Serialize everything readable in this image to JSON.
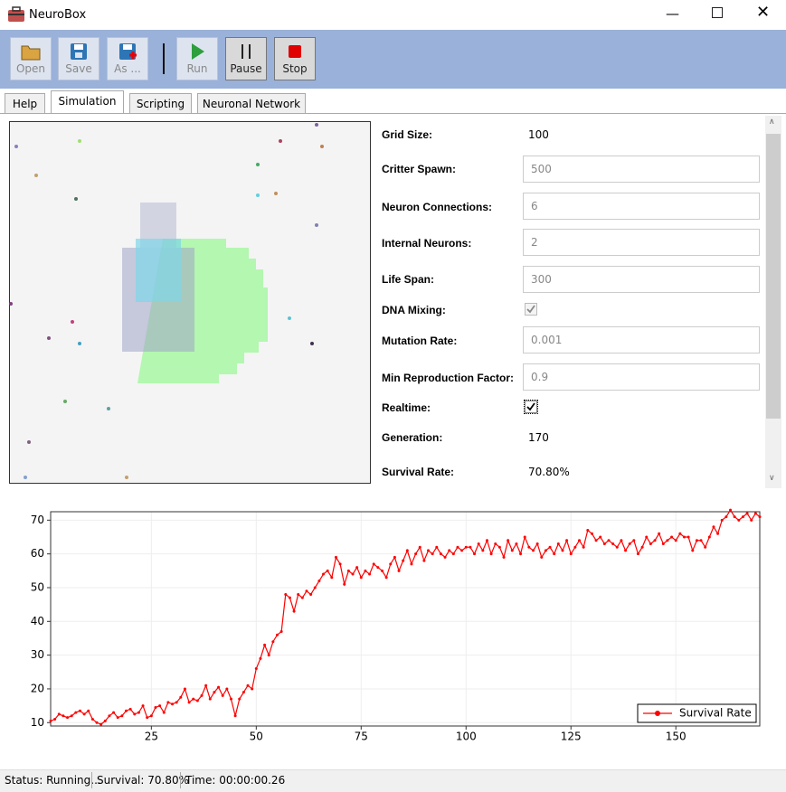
{
  "window": {
    "title": "NeuroBox"
  },
  "toolbar": [
    "Open",
    "Save",
    "As ...",
    "Run",
    "Pause",
    "Stop"
  ],
  "tabs": [
    "Help",
    "Simulation",
    "Scripting",
    "Neuronal Network"
  ],
  "settings": {
    "labels": [
      "Grid Size:",
      "Critter Spawn:",
      "Neuron Connections:",
      "Internal Neurons:",
      "Life Span:",
      "DNA Mixing:",
      "Mutation Rate:",
      "Min Reproduction Factor:",
      "Realtime:",
      "Generation:",
      "Survival Rate:"
    ],
    "grid_size": "100",
    "critter_spawn": "500",
    "neuron_connections": "6",
    "internal_neurons": "2",
    "life_span": "300",
    "dna_mixing": true,
    "mutation_rate": "0.001",
    "min_reproduction_factor": "0.9",
    "realtime": true,
    "generation": "170",
    "survival_rate": "70.80%"
  },
  "chart_data": {
    "type": "line",
    "x": [
      1,
      2,
      3,
      4,
      5,
      6,
      7,
      8,
      9,
      10,
      11,
      12,
      13,
      14,
      15,
      16,
      17,
      18,
      19,
      20,
      21,
      22,
      23,
      24,
      25,
      26,
      27,
      28,
      29,
      30,
      31,
      32,
      33,
      34,
      35,
      36,
      37,
      38,
      39,
      40,
      41,
      42,
      43,
      44,
      45,
      46,
      47,
      48,
      49,
      50,
      51,
      52,
      53,
      54,
      55,
      56,
      57,
      58,
      59,
      60,
      61,
      62,
      63,
      64,
      65,
      66,
      67,
      68,
      69,
      70,
      71,
      72,
      73,
      74,
      75,
      76,
      77,
      78,
      79,
      80,
      81,
      82,
      83,
      84,
      85,
      86,
      87,
      88,
      89,
      90,
      91,
      92,
      93,
      94,
      95,
      96,
      97,
      98,
      99,
      100,
      101,
      102,
      103,
      104,
      105,
      106,
      107,
      108,
      109,
      110,
      111,
      112,
      113,
      114,
      115,
      116,
      117,
      118,
      119,
      120,
      121,
      122,
      123,
      124,
      125,
      126,
      127,
      128,
      129,
      130,
      131,
      132,
      133,
      134,
      135,
      136,
      137,
      138,
      139,
      140,
      141,
      142,
      143,
      144,
      145,
      146,
      147,
      148,
      149,
      150,
      151,
      152,
      153,
      154,
      155,
      156,
      157,
      158,
      159,
      160,
      161,
      162,
      163,
      164,
      165,
      166,
      167,
      168,
      169,
      170
    ],
    "series": [
      {
        "name": "Survival Rate",
        "color": "#ff0000",
        "values": [
          10.5,
          11,
          12.5,
          12,
          11.5,
          12,
          13,
          13.5,
          12.5,
          13.5,
          11,
          10,
          9.5,
          10.5,
          12,
          13,
          11.5,
          12,
          13.5,
          14,
          12.5,
          13,
          15,
          11.5,
          12,
          14.5,
          15,
          13,
          16,
          15.5,
          16,
          17.5,
          20,
          16,
          17,
          16.5,
          18,
          21,
          17,
          19,
          20.5,
          18,
          20,
          17,
          12,
          17,
          19,
          21,
          20,
          26,
          29,
          33,
          30,
          34,
          36,
          37,
          48,
          47,
          43,
          48,
          47,
          49,
          48,
          50,
          52,
          54,
          55,
          53,
          59,
          57,
          51,
          55,
          54,
          56,
          53,
          55,
          54,
          57,
          56,
          55,
          53,
          57,
          59,
          55,
          58,
          61,
          57,
          60,
          62,
          58,
          61,
          60,
          62,
          60,
          59,
          61,
          60,
          62,
          61,
          62,
          62,
          60,
          63,
          61,
          64,
          60,
          63,
          62,
          59,
          64,
          61,
          63,
          60,
          65,
          62,
          61,
          63,
          59,
          61,
          62,
          60,
          63,
          61,
          64,
          60,
          62,
          64,
          62,
          67,
          66,
          64,
          65,
          63,
          64,
          63,
          62,
          64,
          61,
          63,
          64,
          60,
          62,
          65,
          63,
          64,
          66,
          63,
          64,
          65,
          64,
          66,
          65,
          65,
          61,
          64,
          64,
          62,
          65,
          68,
          66,
          70,
          71,
          73,
          71,
          70,
          71,
          72,
          70,
          72,
          71
        ]
      }
    ],
    "xlim": [
      1,
      170
    ],
    "xticks": [
      25,
      50,
      75,
      100,
      125,
      150
    ],
    "ylim": [
      9,
      72.5
    ],
    "yticks": [
      10,
      20,
      30,
      40,
      50,
      60,
      70
    ],
    "grid": true,
    "legend": "bottom-right"
  },
  "status": [
    "Status: Running...",
    "Survival: 70.80%",
    "Time: 00:00:00.26"
  ]
}
